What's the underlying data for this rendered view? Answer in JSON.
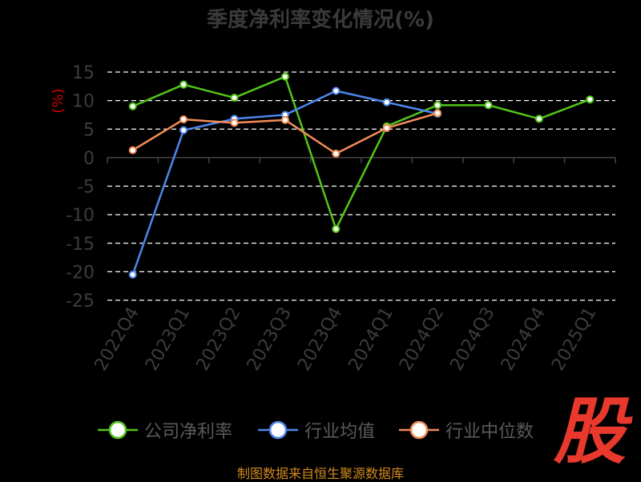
{
  "title": "季度净利率变化情况(%)",
  "source": "制图数据来自恒生聚源数据库",
  "logo_text": "股",
  "chart_data": {
    "type": "line",
    "ylabel": "(%)",
    "ylim": [
      -25,
      15
    ],
    "yticks": [
      15,
      10,
      5,
      0,
      -5,
      -10,
      -15,
      -20,
      -25
    ],
    "categories": [
      "2022Q4",
      "2023Q1",
      "2023Q2",
      "2023Q3",
      "2023Q4",
      "2024Q1",
      "2024Q2",
      "2024Q3",
      "2024Q4",
      "2025Q1"
    ],
    "grid": true,
    "legend_position": "bottom",
    "series": [
      {
        "name": "公司净利率",
        "color": "#52c41a",
        "values": [
          9.0,
          12.8,
          10.5,
          14.2,
          -12.5,
          5.5,
          9.2,
          9.2,
          6.8,
          10.2
        ]
      },
      {
        "name": "行业均值",
        "color": "#4f86ec",
        "values": [
          -20.5,
          4.8,
          6.8,
          7.5,
          11.7,
          9.7,
          7.7,
          null,
          null,
          null
        ]
      },
      {
        "name": "行业中位数",
        "color": "#f38c58",
        "values": [
          1.3,
          6.7,
          6.1,
          6.6,
          0.7,
          5.2,
          7.8,
          null,
          null,
          null
        ]
      }
    ]
  }
}
